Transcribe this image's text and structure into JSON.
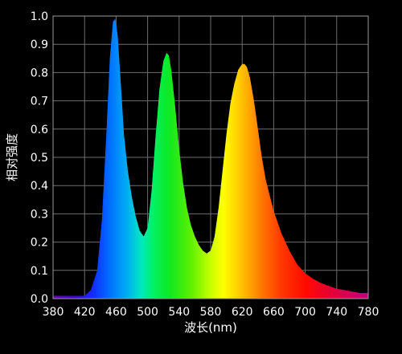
{
  "chart_data": {
    "type": "area",
    "title": "",
    "xlabel": "波长(nm)",
    "ylabel": "相对强度",
    "xlim": [
      380,
      780
    ],
    "ylim": [
      0,
      1.0
    ],
    "grid": true,
    "x_ticks": [
      380,
      420,
      460,
      500,
      540,
      580,
      620,
      660,
      700,
      740,
      780
    ],
    "y_ticks": [
      0.0,
      0.1,
      0.2,
      0.3,
      0.4,
      0.5,
      0.6,
      0.7,
      0.8,
      0.9,
      1.0
    ],
    "x_tick_labels": [
      "380",
      "420",
      "460",
      "500",
      "540",
      "580",
      "620",
      "660",
      "700",
      "740",
      "780"
    ],
    "y_tick_labels": [
      "0.0",
      "0.1",
      "0.2",
      "0.3",
      "0.4",
      "0.5",
      "0.6",
      "0.7",
      "0.8",
      "0.9",
      "1.0"
    ],
    "series": [
      {
        "x": [
          380,
          400,
          420,
          428,
          436,
          442,
          448,
          452,
          456,
          459,
          462,
          466,
          470,
          475,
          480,
          485,
          490,
          495,
          500,
          505,
          510,
          515,
          520,
          524,
          527,
          530,
          535,
          540,
          545,
          550,
          555,
          560,
          565,
          570,
          575,
          580,
          585,
          590,
          595,
          600,
          605,
          610,
          615,
          620,
          623,
          626,
          630,
          635,
          640,
          645,
          650,
          660,
          670,
          680,
          690,
          700,
          710,
          720,
          730,
          740,
          750,
          760,
          770,
          780
        ],
        "y": [
          0.01,
          0.01,
          0.01,
          0.03,
          0.1,
          0.28,
          0.6,
          0.85,
          0.98,
          0.99,
          0.93,
          0.76,
          0.58,
          0.45,
          0.36,
          0.29,
          0.24,
          0.22,
          0.25,
          0.38,
          0.57,
          0.74,
          0.84,
          0.87,
          0.86,
          0.81,
          0.68,
          0.53,
          0.41,
          0.32,
          0.26,
          0.22,
          0.19,
          0.17,
          0.16,
          0.17,
          0.22,
          0.32,
          0.45,
          0.58,
          0.69,
          0.76,
          0.81,
          0.83,
          0.83,
          0.82,
          0.78,
          0.7,
          0.6,
          0.5,
          0.42,
          0.31,
          0.23,
          0.17,
          0.12,
          0.09,
          0.07,
          0.055,
          0.045,
          0.035,
          0.03,
          0.025,
          0.02,
          0.02
        ]
      }
    ]
  }
}
